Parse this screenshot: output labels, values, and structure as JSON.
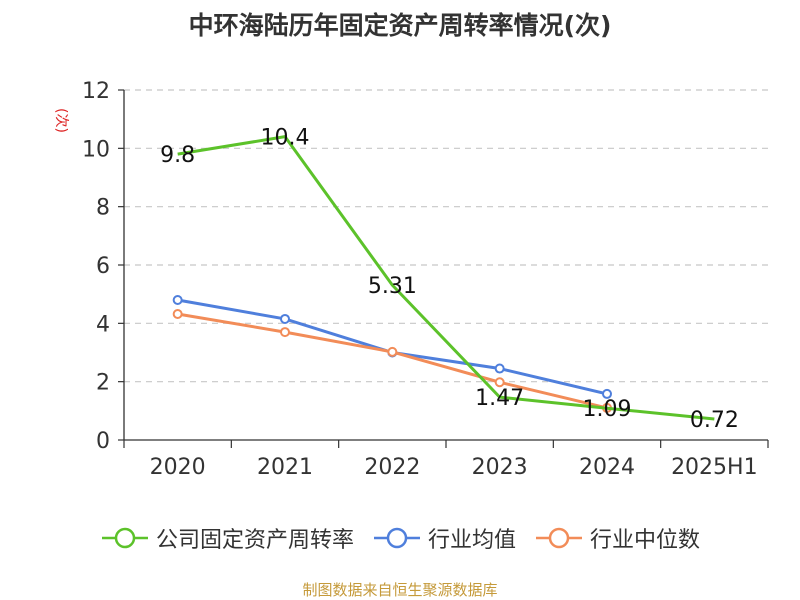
{
  "title": "中环海陆历年固定资产周转率情况(次)",
  "source": "制图数据来自恒生聚源数据库",
  "colors": {
    "company": "#5cc22a",
    "average": "#4f7fdc",
    "median": "#f28c58",
    "grid": "#c8c8c8",
    "axis": "#333333",
    "ylabel": "#dd2222"
  },
  "chart_data": {
    "type": "line",
    "title": "中环海陆历年固定资产周转率情况(次)",
    "xlabel": "",
    "ylabel": "(次)",
    "categories": [
      "2020",
      "2021",
      "2022",
      "2023",
      "2024",
      "2025H1"
    ],
    "ylim": [
      0,
      12
    ],
    "yticks": [
      0,
      2,
      4,
      6,
      8,
      10,
      12
    ],
    "grid": true,
    "legend_position": "bottom",
    "series": [
      {
        "name": "公司固定资产周转率",
        "color": "#5cc22a",
        "values": [
          9.8,
          10.4,
          5.31,
          1.47,
          1.09,
          0.72
        ],
        "labels": [
          "9.8",
          "10.4",
          "5.31",
          "1.47",
          "1.09",
          "0.72"
        ],
        "show_labels": true,
        "show_markers": false
      },
      {
        "name": "行业均值",
        "color": "#4f7fdc",
        "values": [
          4.8,
          4.15,
          3.0,
          2.45,
          1.58,
          null
        ],
        "show_labels": false,
        "show_markers": true
      },
      {
        "name": "行业中位数",
        "color": "#f28c58",
        "values": [
          4.32,
          3.7,
          3.02,
          1.98,
          1.1,
          null
        ],
        "show_labels": false,
        "show_markers": true
      }
    ]
  }
}
